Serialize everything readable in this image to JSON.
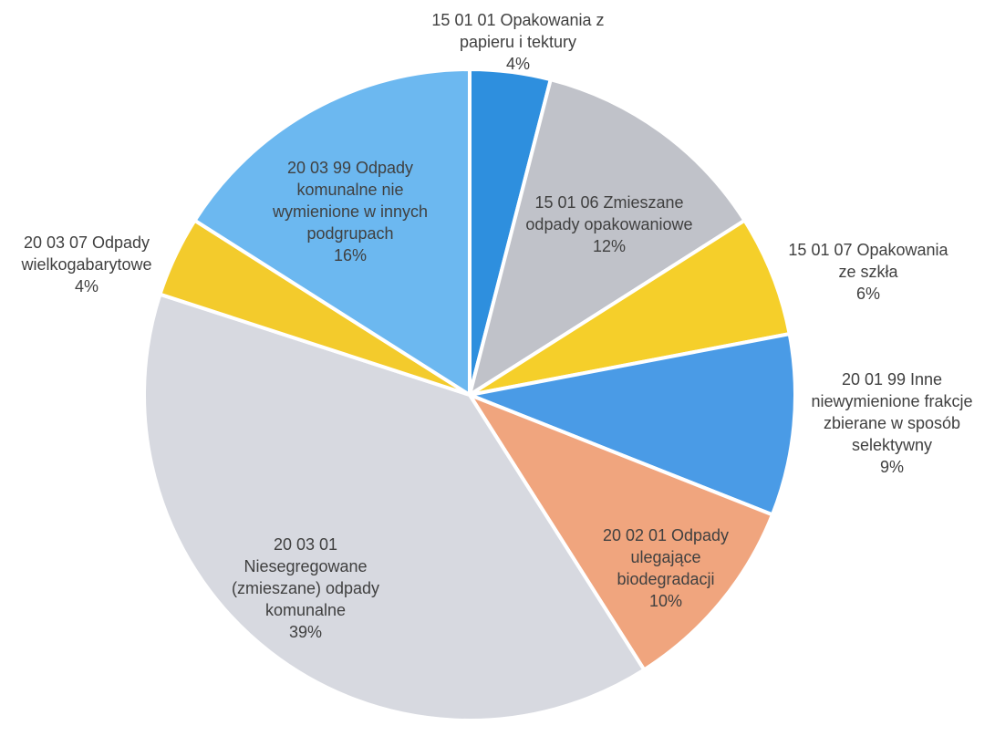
{
  "chart_data": {
    "type": "pie",
    "categories": [
      "15 01 01 Opakowania z papieru i tektury",
      "15 01 06 Zmieszane odpady opakowaniowe",
      "15 01 07 Opakowania ze szkła",
      "20 01 99 Inne niewymienione frakcje zbierane w sposób selektywny",
      "20 02 01 Odpady ulegające biodegradacji",
      "20 03 01 Niesegregowane (zmieszane) odpady komunalne",
      "20 03 07 Odpady wielkogabarytowe",
      "20 03 99 Odpady komunalne nie wymienione w innych podgrupach"
    ],
    "values": [
      4,
      12,
      6,
      9,
      10,
      39,
      4,
      16
    ],
    "value_labels": [
      "4%",
      "12%",
      "6%",
      "9%",
      "10%",
      "39%",
      "4%",
      "16%"
    ],
    "colors": [
      "#2e8fde",
      "#c0c2c9",
      "#f5cf2a",
      "#4a9be6",
      "#f0a57e",
      "#d7d9e0",
      "#f3cb2c",
      "#6cb8f0"
    ]
  }
}
